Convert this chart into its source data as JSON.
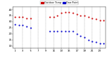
{
  "temp_color": "#cc0000",
  "dew_color": "#0000cc",
  "background_color": "#ffffff",
  "grid_color": "#999999",
  "hours": [
    1,
    2,
    3,
    4,
    5,
    6,
    7,
    8,
    9,
    10,
    11,
    12,
    13,
    14,
    15,
    16,
    17,
    18,
    19,
    20,
    21,
    22,
    23,
    24
  ],
  "temp_values": [
    34,
    34,
    34,
    33,
    33,
    null,
    null,
    null,
    null,
    34,
    34,
    35,
    37,
    38,
    38,
    37,
    36,
    35,
    35,
    34,
    33,
    32,
    31,
    31
  ],
  "dew_values": [
    28,
    27,
    27,
    26,
    25,
    null,
    null,
    null,
    null,
    22,
    22,
    22,
    22,
    22,
    22,
    22,
    20,
    18,
    17,
    15,
    14,
    13,
    12,
    12
  ],
  "ylim": [
    8,
    42
  ],
  "ytick_vals": [
    10,
    15,
    20,
    25,
    30,
    35,
    40
  ],
  "ytick_labels": [
    "10",
    "15",
    "20",
    "25",
    "30",
    "35",
    "40"
  ],
  "xlim": [
    0.5,
    24.5
  ],
  "xtick_pos": [
    1,
    3,
    5,
    7,
    9,
    11,
    13,
    15,
    17,
    19,
    21,
    23
  ],
  "xtick_labels": [
    "1",
    "3",
    "5",
    "7",
    "9",
    "11",
    "13",
    "15",
    "17",
    "19",
    "21",
    "23"
  ],
  "legend_temp": "Outdoor Temp",
  "legend_dew": "Dew Point",
  "marker_size": 1.2,
  "figsize": [
    1.6,
    0.87
  ],
  "dpi": 100,
  "vline_positions": [
    3,
    5,
    7,
    9,
    11,
    13,
    15,
    17,
    19,
    21,
    23
  ]
}
